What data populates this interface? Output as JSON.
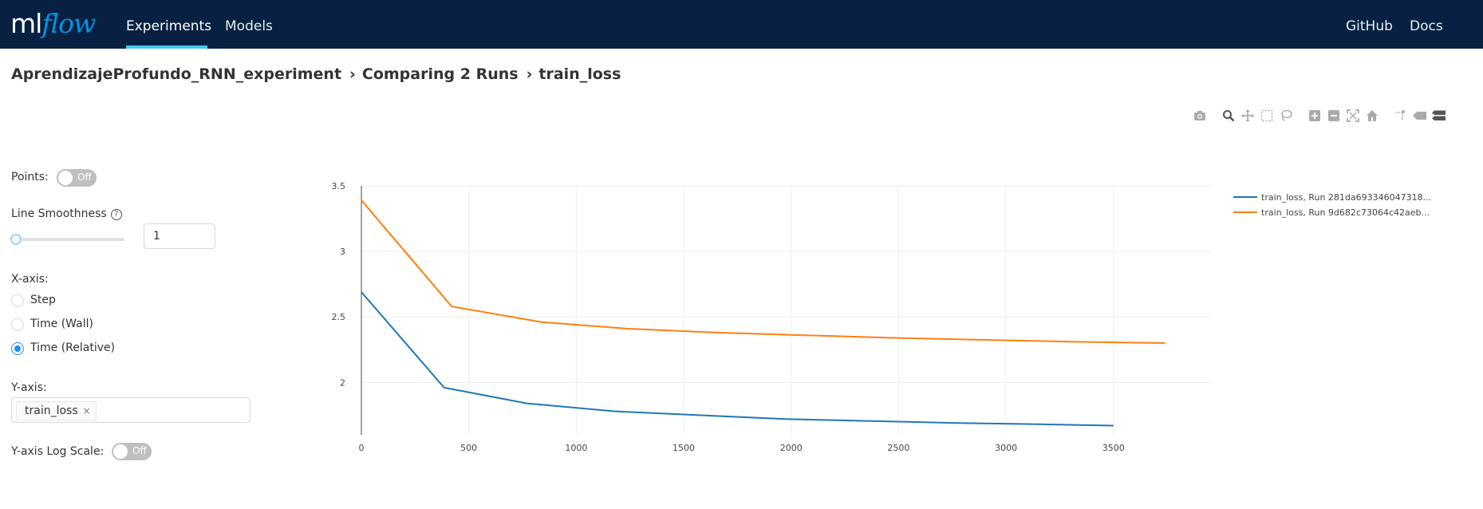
{
  "header": {
    "logo_ml": "ml",
    "logo_flow": "flow",
    "nav": [
      "Experiments",
      "Models"
    ],
    "right_nav": [
      "GitHub",
      "Docs"
    ]
  },
  "breadcrumb": {
    "experiment": "AprendizajeProfundo_RNN_experiment",
    "compare": "Comparing 2 Runs",
    "metric": "train_loss"
  },
  "modebar": [
    "camera-icon",
    "zoom-icon",
    "pan-icon",
    "box-select-icon",
    "lasso-icon",
    "zoom-in-icon",
    "zoom-out-icon",
    "autoscale-icon",
    "reset-axes-icon",
    "spike-lines-icon",
    "hover-closest-icon",
    "hover-compare-icon"
  ],
  "controls": {
    "points_label": "Points:",
    "points_toggle": "Off",
    "smoothness_label": "Line Smoothness",
    "smoothness_help": "?",
    "smoothness_value": "1",
    "smoothness_slider_value": 1,
    "xaxis_label": "X-axis:",
    "xaxis_options": [
      "Step",
      "Time (Wall)",
      "Time (Relative)"
    ],
    "xaxis_selected": "Time (Relative)",
    "yaxis_label": "Y-axis:",
    "yaxis_tag": "train_loss",
    "tag_close": "×",
    "log_label": "Y-axis Log Scale:",
    "log_toggle": "Off"
  },
  "chart_data": {
    "type": "line",
    "title": "",
    "xlabel": "",
    "ylabel": "",
    "xlim": [
      0,
      3950
    ],
    "ylim": [
      1.6,
      3.5
    ],
    "x_ticks": [
      0,
      500,
      1000,
      1500,
      2000,
      2500,
      3000,
      3500
    ],
    "y_ticks": [
      2,
      2.5,
      3,
      3.5
    ],
    "x_tick_labels": [
      "0",
      "500",
      "1000",
      "1500",
      "2000",
      "2500",
      "3000",
      "3500"
    ],
    "y_tick_labels": [
      "2",
      "2.5",
      "3",
      "3.5"
    ],
    "grid": true,
    "legend_position": "top-right",
    "series": [
      {
        "name": "train_loss, Run 281da693346047318...",
        "color": "#1f77b4",
        "x": [
          0,
          385,
          770,
          1175,
          1570,
          1975,
          2375,
          2775,
          3175,
          3500
        ],
        "y": [
          2.69,
          1.96,
          1.84,
          1.78,
          1.75,
          1.72,
          1.705,
          1.69,
          1.68,
          1.67
        ]
      },
      {
        "name": "train_loss, Run 9d682c73064c42aeb...",
        "color": "#ff7f0e",
        "x": [
          0,
          420,
          840,
          1240,
          1660,
          2060,
          2480,
          2900,
          3320,
          3740
        ],
        "y": [
          3.39,
          2.58,
          2.46,
          2.41,
          2.38,
          2.36,
          2.34,
          2.325,
          2.31,
          2.3
        ]
      }
    ]
  }
}
